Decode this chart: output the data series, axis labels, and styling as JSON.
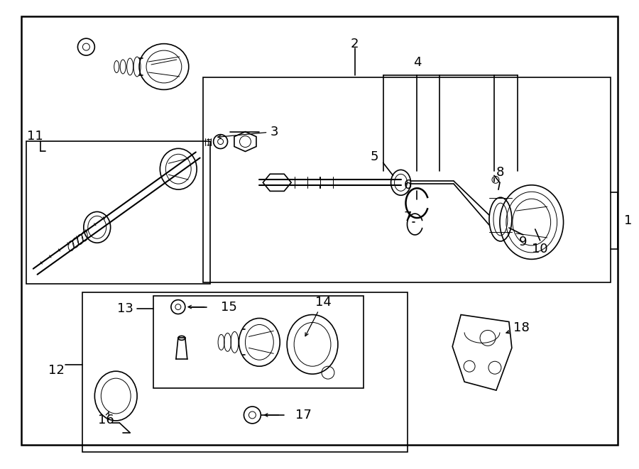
{
  "bg_color": "#ffffff",
  "line_color": "#000000",
  "text_color": "#000000",
  "lw_outer": 1.8,
  "lw_med": 1.2,
  "lw_thin": 0.7,
  "fontsize": 13
}
